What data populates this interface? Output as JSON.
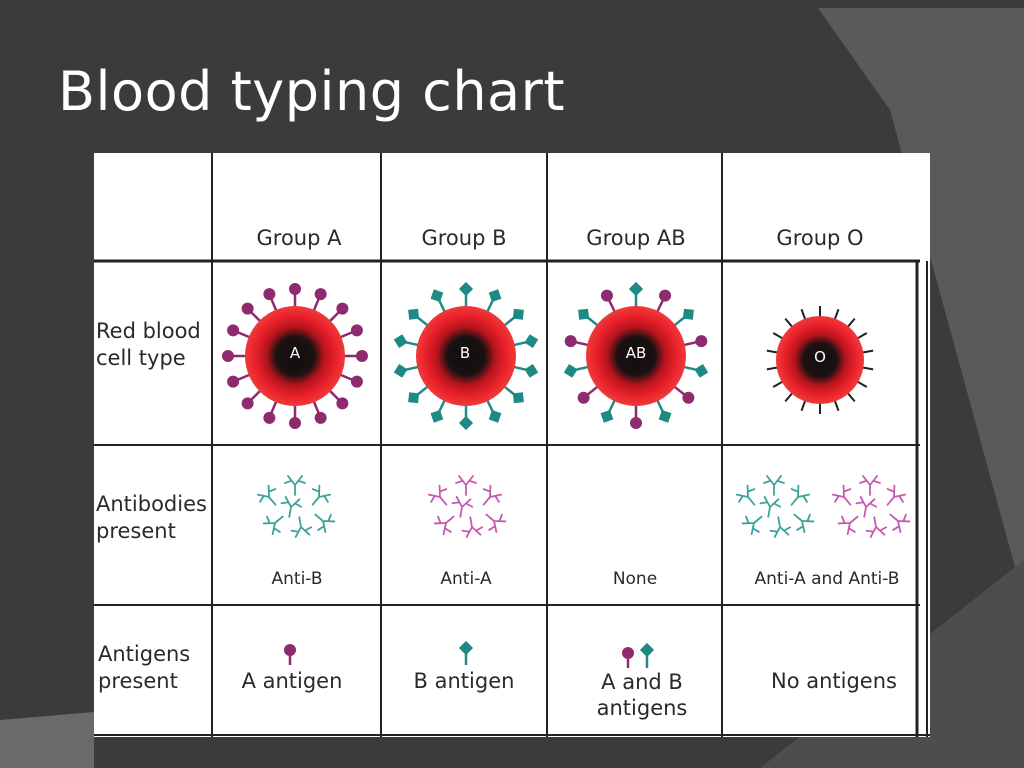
{
  "slide": {
    "title": "Blood typing chart"
  },
  "table": {
    "columns": [
      "Group A",
      "Group B",
      "Group AB",
      "Group O"
    ],
    "rows": [
      {
        "label": "Red blood cell type"
      },
      {
        "label": "Antibodies present"
      },
      {
        "label": "Antigens present"
      }
    ],
    "row_label_lines": {
      "rbc": [
        "Red blood",
        "cell type"
      ],
      "antibodies": [
        "Antibodies",
        "present"
      ],
      "antigens": [
        "Antigens",
        "present"
      ]
    },
    "cell_letters": [
      "A",
      "B",
      "AB",
      "O"
    ],
    "antibody_labels": [
      "Anti-B",
      "Anti-A",
      "None",
      "Anti-A and Anti-B"
    ],
    "antigen_labels": [
      "A antigen",
      "B antigen",
      "A and B antigens",
      "No antigens"
    ],
    "antigen_label_lines": {
      "ab": [
        "A and B",
        "antigens"
      ]
    }
  },
  "colors": {
    "background": "#3b3b3b",
    "cell_red": "#e8202a",
    "cell_dark": "#1a1212",
    "antigen_a": "#8e2a6e",
    "antigen_b": "#1f8a84",
    "antibody_teal": "#3aa39a",
    "antibody_pink": "#c65ab0"
  }
}
